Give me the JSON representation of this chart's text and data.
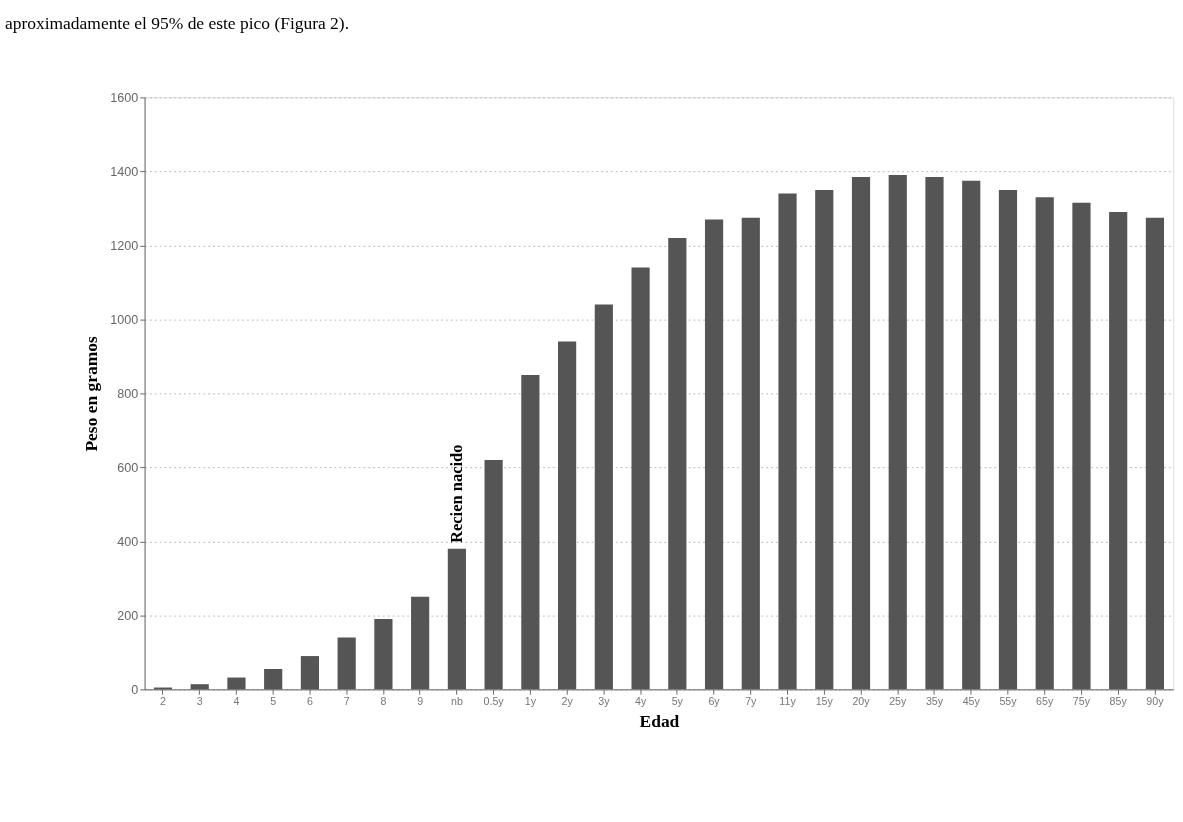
{
  "chart_data": {
    "type": "bar",
    "xlabel": "Edad",
    "ylabel": "Peso en gramos",
    "categories": [
      "2",
      "3",
      "4",
      "5",
      "6",
      "7",
      "8",
      "9",
      "nb",
      "0.5y",
      "1y",
      "2y",
      "3y",
      "4y",
      "5y",
      "6y",
      "7y",
      "11y",
      "15y",
      "20y",
      "25y",
      "35y",
      "45y",
      "55y",
      "65y",
      "75y",
      "85y",
      "90y"
    ],
    "values": [
      5,
      14,
      32,
      55,
      90,
      140,
      190,
      250,
      380,
      620,
      850,
      940,
      1040,
      1140,
      1220,
      1270,
      1275,
      1340,
      1350,
      1385,
      1390,
      1385,
      1375,
      1350,
      1330,
      1315,
      1290,
      1275
    ],
    "color": "#555555",
    "ylim": [
      0,
      1600
    ],
    "yticks": [
      0,
      200,
      400,
      600,
      800,
      1000,
      1200,
      1400,
      1600
    ],
    "grid": "y",
    "annotations": [
      "aproximadamente el 95% de este pico (Figura 2).",
      {
        "text": "Recien nacido",
        "x": "nb",
        "y": 380
      }
    ]
  }
}
